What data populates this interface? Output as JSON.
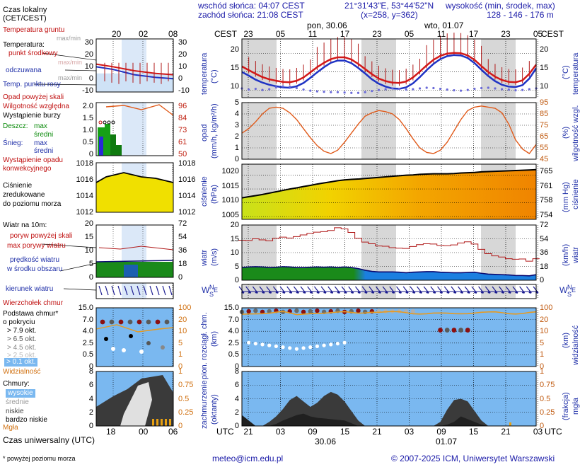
{
  "header": {
    "sunrise": "wschód słońca: 04:07 CEST",
    "sunset": "zachód słońca: 21:08 CEST",
    "coords": "21°31'43\"E, 53°44'52\"N",
    "grid": "(x=258, y=362)",
    "elev_title": "wysokość (min, środek, max)",
    "elev_values": "128 - 146 - 176 m"
  },
  "timeline": {
    "local_tz": "CEST",
    "day1": "pon, 30.06",
    "day2": "wto, 01.07",
    "top_ticks": [
      "23",
      "05",
      "11",
      "17",
      "23",
      "05",
      "11",
      "17",
      "23",
      "05"
    ],
    "utc_label": "UTC",
    "bottom_ticks": [
      "21",
      "03",
      "09",
      "15",
      "21",
      "03",
      "09",
      "15",
      "21",
      "03"
    ],
    "bottom_dates": [
      "30.06",
      "01.07"
    ],
    "legend_top_ticks": [
      "20",
      "02",
      "08"
    ],
    "legend_bottom_ticks": [
      "18",
      "00",
      "06"
    ]
  },
  "legend": {
    "time_local": "Czas lokalny",
    "time_local_tz": "(CET/CEST)",
    "soil_temp": "Temperatura gruntu",
    "max_min": "max/min",
    "temperature": "Temperatura:",
    "mid_point": "punkt środkowy",
    "max_min_grey": "max/min",
    "apparent": "odczuwana",
    "max_min_grey2": "max/min",
    "dew_point": "Temp. punktu rosy",
    "precip_above": "Opad powyżej skali",
    "humidity": "Wilgotność względna",
    "storm": "Wystąpienie burzy",
    "rain": "Deszcz:",
    "rain_max": "max",
    "rain_mid": "średni",
    "snow": "Śnieg:",
    "snow_max": "max",
    "snow_mid": "średni",
    "convective": "Wystąpienie opadu",
    "convective2": "konwekcyjnego",
    "pressure": "Ciśnienie",
    "pressure2": "zredukowane",
    "pressure3": "do poziomu morza",
    "wind10": "Wiatr na 10m:",
    "gust_above": "poryw powyżej skali",
    "gust_max": "max porywy wiatru",
    "wind_speed": "prędkość wiatru",
    "wind_speed2": "w środku obszaru",
    "wind_dir": "kierunek wiatru",
    "cloud_top": "Wierzchołek chmur",
    "cloud_base": "Podstawa chmur*",
    "cloud_base2": "o pokryciu",
    "okt79": "> 7.9 okt.",
    "okt65": "> 6.5 okt.",
    "okt45": "> 4.5 okt.",
    "okt25": "> 2.5 okt.",
    "okt01": "> 0.1 okt.",
    "visibility": "Widzialność",
    "clouds": "Chmury:",
    "high": "wysokie",
    "mid": "średnie",
    "low": "niskie",
    "very_low": "bardzo niskie",
    "fog": "Mgła",
    "utc_time": "Czas uniwersalny (UTC)",
    "footnote": "* powyżej poziomu morza"
  },
  "legend_scales": {
    "temp_left": [
      "30",
      "20",
      "10",
      "0",
      "-10"
    ],
    "temp_right": [
      "30",
      "20",
      "10",
      "0",
      "-10"
    ],
    "precip_left": [
      "2.0",
      "1.5",
      "1.0",
      "0.5",
      "0"
    ],
    "precip_right": [
      "96",
      "84",
      "73",
      "61",
      "50"
    ],
    "pres_left": [
      "1018",
      "1016",
      "1014",
      "1012"
    ],
    "pres_right": [
      "1018",
      "1016",
      "1014",
      "1012"
    ],
    "wind_left": [
      "20",
      "15",
      "10",
      "5",
      "0"
    ],
    "wind_right": [
      "72",
      "54",
      "36",
      "18",
      "0"
    ],
    "cloudbase_left": [
      "15.0",
      "7.0",
      "4.0",
      "2.5",
      "0.5",
      "0"
    ],
    "cloudbase_right": [
      "100",
      "20",
      "10",
      "5",
      "1",
      "0"
    ],
    "clouds_left": [
      "8",
      "6",
      "4",
      "2",
      "0"
    ],
    "clouds_right": [
      "1",
      "0.75",
      "0.5",
      "0.25",
      "0"
    ]
  },
  "panels": {
    "temperature": {
      "label_left": "temperatura",
      "unit_left": "(°C)",
      "unit_right": "(°C)",
      "label_right": "temperatura",
      "ticks_left": [
        "20",
        "15",
        "10"
      ],
      "ticks_right": [
        "20",
        "15",
        "10"
      ]
    },
    "precip": {
      "label_left": "opad",
      "unit_left": "(mm/h, kg/m²/h)",
      "unit_right": "(%)",
      "label_right": "wilgotność wzgl.",
      "ticks_left": [
        "5",
        "4",
        "3",
        "2",
        "1",
        "0"
      ],
      "ticks_right": [
        "95",
        "85",
        "75",
        "65",
        "55",
        "45"
      ]
    },
    "pressure": {
      "label_left": "ciśnienie",
      "unit_left": "(hPa)",
      "unit_right": "(mm Hg)",
      "label_right": "ciśnienie",
      "ticks_left": [
        "1020",
        "1015",
        "1010",
        "1005"
      ],
      "ticks_right": [
        "765",
        "761",
        "758",
        "754"
      ]
    },
    "wind": {
      "label_left": "wiatr",
      "unit_left": "(m/s)",
      "unit_right": "(km/h)",
      "label_right": "wiatr",
      "ticks_left": [
        "20",
        "15",
        "10",
        "5",
        "0"
      ],
      "ticks_right": [
        "72",
        "54",
        "36",
        "18",
        "0"
      ]
    },
    "direction": {
      "left": "W",
      "left_ns_n": "N",
      "left_ns_s": "S",
      "left_e": "E",
      "right": "W",
      "right_n": "N",
      "right_s": "S",
      "right_e": "E"
    },
    "cloudbase": {
      "label_left": "pion. rozciągł. chm.",
      "unit_left": "(km)",
      "unit_right": "(km)",
      "label_right": "widzialność",
      "ticks_left": [
        "15.0",
        "7.0",
        "4.0",
        "2.5",
        "0.5",
        "0"
      ],
      "ticks_right": [
        "100",
        "20",
        "10",
        "5",
        "1",
        "0"
      ]
    },
    "clouds": {
      "label_left": "zachmurzenie",
      "unit_left": "(oktanty)",
      "unit_right": "(frakcja)",
      "label_right": "mgła",
      "ticks_left": [
        "8",
        "6",
        "4",
        "2",
        "0"
      ],
      "ticks_right": [
        "1",
        "0.75",
        "0.5",
        "0.25",
        "0"
      ]
    }
  },
  "series": {
    "temp_mid": [
      16.5,
      15.5,
      14.5,
      13.6,
      13.0,
      12.6,
      12.3,
      12.2,
      12.6,
      13.5,
      14.9,
      16.3,
      17.5,
      18.5,
      19.0,
      19.0,
      18.4,
      17.2,
      15.8,
      14.4,
      13.2,
      12.5,
      12.1,
      12.0,
      12.4,
      13.5,
      15.1,
      16.8,
      18.3,
      19.4,
      20.0,
      20.2,
      20.1,
      19.5,
      18.3,
      16.6,
      15.0,
      13.7,
      12.8,
      12.3,
      12.2,
      12.7,
      14.5,
      17.0
    ],
    "temp_apparent": [
      15.0,
      14.0,
      12.9,
      12.1,
      11.5,
      11.1,
      10.8,
      10.7,
      11.1,
      12.0,
      13.4,
      14.9,
      16.3,
      17.5,
      18.1,
      18.1,
      17.4,
      16.1,
      14.6,
      13.0,
      11.8,
      11.0,
      10.5,
      10.4,
      10.8,
      11.9,
      13.6,
      15.5,
      17.2,
      18.5,
      19.3,
      19.6,
      19.5,
      18.8,
      17.4,
      15.6,
      13.9,
      12.5,
      11.5,
      11.0,
      10.9,
      11.4,
      13.2,
      16.0
    ],
    "dew": [
      10.5,
      10.2,
      10.4,
      10.1,
      10.3,
      10.8,
      11.1,
      11.0,
      10.6,
      10.2,
      9.9,
      9.7,
      9.6,
      9.5,
      9.5,
      9.4,
      9.3,
      9.3,
      9.5,
      9.8,
      10.1,
      10.3,
      10.5,
      10.4,
      10.2,
      10.3,
      10.5,
      10.7,
      10.6,
      10.4,
      10.2,
      10.0,
      9.9,
      10.1,
      10.4,
      10.6,
      10.7,
      10.5,
      10.3,
      10.2,
      10.0,
      10.1,
      10.3,
      10.5
    ],
    "humidity": [
      68,
      72,
      78,
      85,
      90,
      91,
      90,
      86,
      80,
      72,
      64,
      57,
      52,
      50,
      53,
      60,
      68,
      76,
      83,
      86,
      88,
      87,
      85,
      80,
      72,
      63,
      55,
      51,
      50,
      53,
      60,
      70,
      80,
      88,
      91,
      92,
      91,
      90,
      86,
      76,
      62,
      54,
      50,
      58
    ],
    "pressure": [
      1011.8,
      1012.2,
      1012.6,
      1013.0,
      1013.5,
      1014.0,
      1014.5,
      1015.0,
      1015.4,
      1015.9,
      1016.3,
      1016.8,
      1017.2,
      1017.6,
      1018.0,
      1018.3,
      1018.5,
      1018.6,
      1018.8,
      1019.0,
      1019.2,
      1019.4,
      1019.6,
      1019.8,
      1020.0,
      1020.1,
      1020.3,
      1020.4,
      1020.5,
      1020.5,
      1020.5,
      1020.6,
      1020.8,
      1020.9,
      1021.0,
      1021.2,
      1021.3,
      1021.4,
      1021.5,
      1021.6,
      1021.7,
      1021.8,
      1021.9,
      1022.0
    ],
    "gust": [
      14.5,
      14.4,
      15.0,
      14.6,
      14.3,
      15.2,
      15.6,
      15.3,
      15.8,
      16.4,
      17.0,
      17.4,
      17.6,
      18.0,
      19.0,
      18.6,
      17.3,
      15.2,
      13.8,
      13.2,
      12.4,
      12.3,
      11.8,
      11.6,
      11.5,
      12.2,
      12.9,
      13.2,
      13.1,
      12.6,
      12.5,
      12.8,
      13.5,
      13.9,
      13.1,
      11.2,
      9.6,
      8.8,
      8.4,
      7.8,
      7.6,
      7.7,
      6.9,
      7.8
    ],
    "wind": [
      4.6,
      4.8,
      4.9,
      4.8,
      4.6,
      4.7,
      4.9,
      4.8,
      4.6,
      4.6,
      4.7,
      4.8,
      4.7,
      4.8,
      4.6,
      4.8,
      4.6,
      4.2,
      3.6,
      3.2,
      3.0,
      3.0,
      3.0,
      2.9,
      2.7,
      2.9,
      3.0,
      3.1,
      3.1,
      2.9,
      2.8,
      2.7,
      2.7,
      2.8,
      2.9,
      2.5,
      2.2,
      2.1,
      2.0,
      1.9,
      1.7,
      1.7,
      1.6,
      2.0
    ],
    "vis": [
      15.6,
      15.9,
      16.0,
      16.2,
      16.6,
      17.7,
      18.4,
      16.9,
      15.2,
      15.7,
      16.2,
      16.4,
      16.6,
      17.2,
      17.8,
      18.2,
      17.4,
      16.7,
      16.9,
      17.6,
      17.5,
      18.0,
      18.4,
      18.1,
      17.2,
      16.1,
      15.8,
      16.1,
      16.8,
      16.9,
      16.7,
      16.2,
      16.1,
      16.2,
      16.8,
      17.6,
      17.9,
      18.0,
      17.2,
      16.2,
      15.8,
      16.3,
      17.4,
      18.0
    ],
    "cloud_low": [
      1.2,
      0.4,
      0.0,
      0.0,
      0.6,
      1.4,
      2.5,
      3.8,
      4.4,
      3.6,
      2.8,
      3.4,
      4.4,
      5.0,
      4.6,
      3.6,
      2.2,
      0.8,
      0.0,
      0.0,
      0.0,
      0.0,
      0.0,
      0.0,
      0.0,
      0.0,
      0.0,
      0.0,
      0.0,
      0.6,
      2.4,
      3.8,
      4.0,
      3.6,
      2.2,
      0.8,
      0.0,
      0.0,
      0.0,
      0.0,
      0.0,
      0.0,
      0.0,
      0.0
    ],
    "cloud_very_low": [
      1.6,
      0.8,
      0.0,
      0.0,
      0.0,
      0.3,
      0.8,
      1.2,
      1.6,
      1.8,
      1.4,
      1.2,
      1.1,
      1.0,
      0.9,
      0.8,
      0.4,
      0.0,
      0.0,
      0.0,
      0.0,
      0.0,
      0.0,
      0.0,
      0.0,
      0.0,
      0.0,
      0.0,
      0.0,
      0.0,
      0.2,
      0.6,
      1.4,
      1.0,
      0.6,
      0.2,
      0.0,
      0.0,
      0.0,
      0.0,
      0.0,
      0.0,
      0.0,
      0.0
    ]
  },
  "footer": {
    "email": "meteo@icm.edu.pl",
    "copyright": "© 2007-2025 ICM, Uniwersytet Warszawski"
  },
  "colors": {
    "band": "#d7d7d7",
    "temp_red": "#d21818",
    "temp_blue": "#1f33c4",
    "dew_dots": "#6a6ad8",
    "humidity": "#e05a1a",
    "gust": "#b01818",
    "wind_fill": "#0b6a16",
    "wind_water": "#1b7fe0",
    "sky": "#7ab8f0",
    "cloud": "#3a3a3a",
    "vis": "#e79a20"
  }
}
